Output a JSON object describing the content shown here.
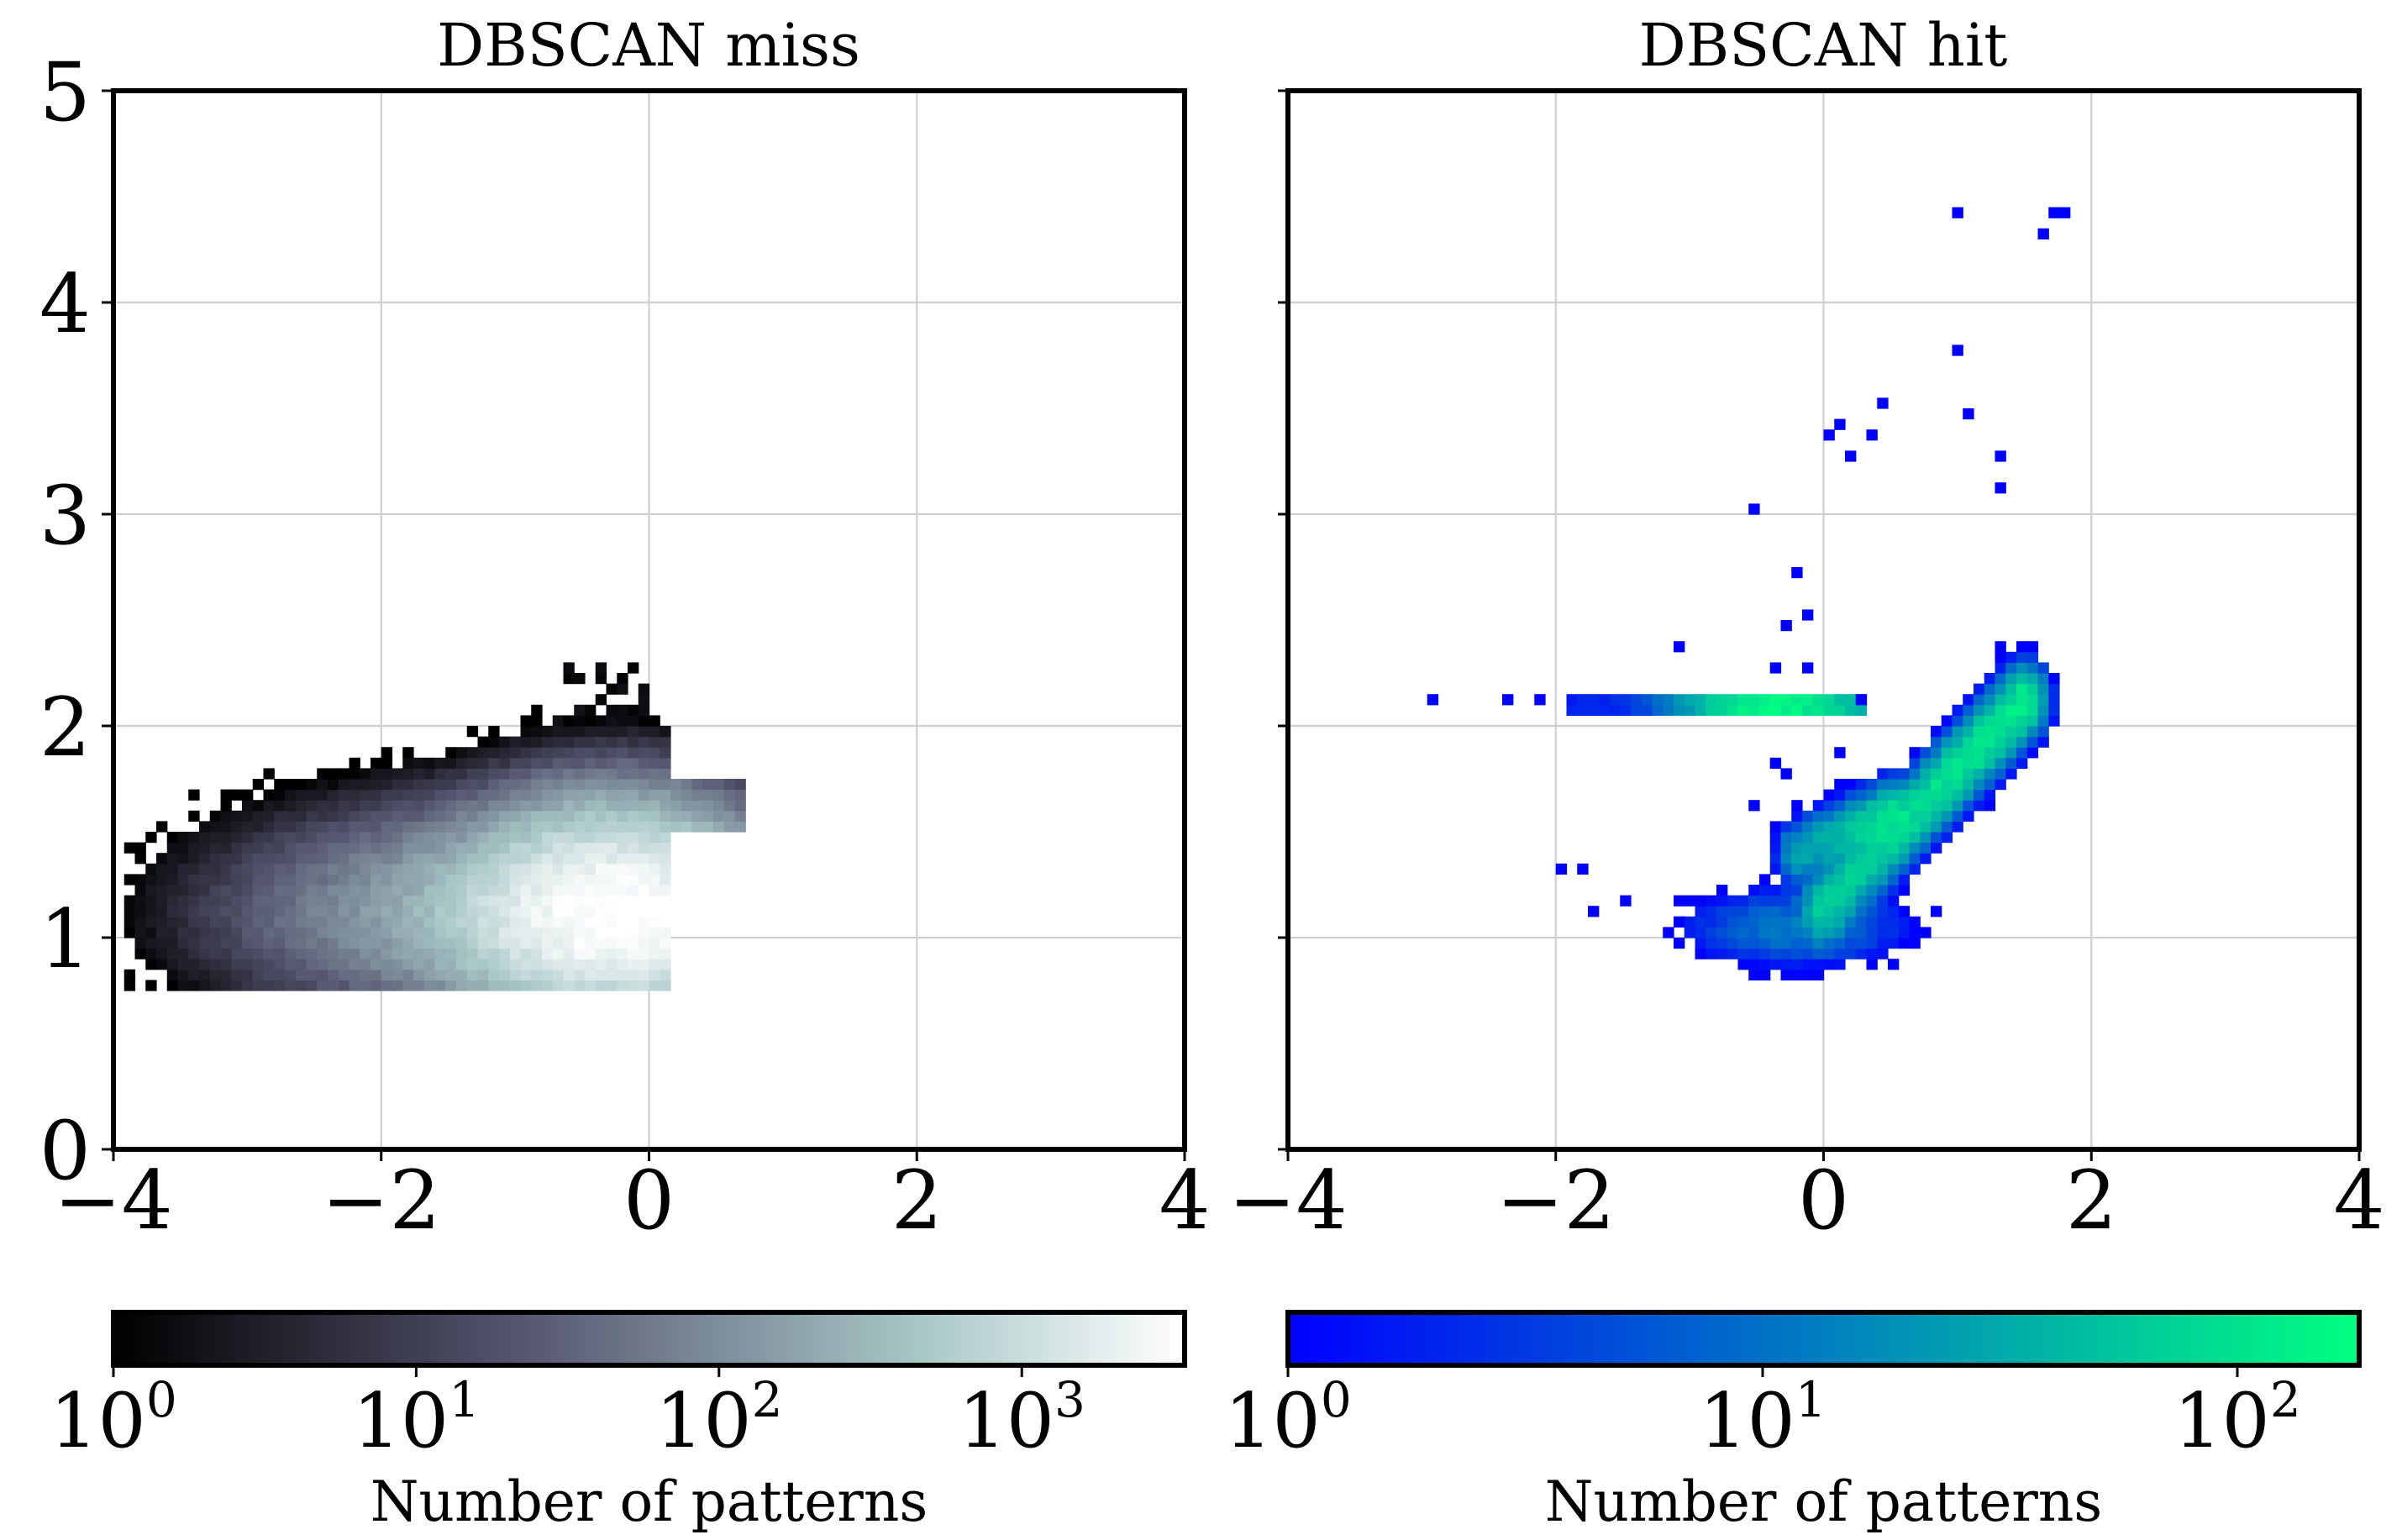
{
  "chart_data": [
    {
      "type": "heatmap",
      "title": "DBSCAN miss",
      "xlabel": "",
      "ylabel": "",
      "xlim": [
        -4,
        4
      ],
      "ylim": [
        0,
        5
      ],
      "grid": true,
      "x_ticks": [
        "−4",
        "−2",
        "0",
        "2",
        "4"
      ],
      "y_ticks": [
        "0",
        "1",
        "2",
        "3",
        "4",
        "5"
      ],
      "colormap": "bone",
      "colorbar": {
        "label": "Number of patterns",
        "scale": "log",
        "range": [
          1,
          3500
        ],
        "ticks": [
          {
            "base": "10",
            "exp": "0",
            "value": 1
          },
          {
            "base": "10",
            "exp": "1",
            "value": 10
          },
          {
            "base": "10",
            "exp": "2",
            "value": 100
          },
          {
            "base": "10",
            "exp": "3",
            "value": 1000
          }
        ]
      },
      "density_regions": [
        {
          "cx": -0.25,
          "cy": 1.1,
          "sx": 0.55,
          "sy": 0.2,
          "peak": 3500
        },
        {
          "cx": -0.9,
          "cy": 1.12,
          "sx": 0.9,
          "sy": 0.22,
          "peak": 300
        },
        {
          "cx": -0.25,
          "cy": 1.35,
          "sx": 0.45,
          "sy": 0.2,
          "peak": 400
        },
        {
          "cx": -0.5,
          "cy": 1.55,
          "sx": 0.5,
          "sy": 0.12,
          "peak": 25
        },
        {
          "cx": -2.2,
          "cy": 1.08,
          "sx": 0.55,
          "sy": 0.1,
          "peak": 8
        }
      ],
      "support": {
        "x": [
          -3.9,
          0.7
        ],
        "y": [
          0.75,
          2.3
        ]
      }
    },
    {
      "type": "heatmap",
      "title": "DBSCAN hit",
      "xlabel": "",
      "ylabel": "",
      "xlim": [
        -4,
        4
      ],
      "ylim": [
        0,
        5
      ],
      "grid": true,
      "x_ticks": [
        "−4",
        "−2",
        "0",
        "2",
        "4"
      ],
      "y_ticks": [
        "0",
        "1",
        "2",
        "3",
        "4",
        "5"
      ],
      "colormap": "winter",
      "colorbar": {
        "label": "Number of patterns",
        "scale": "log",
        "range": [
          1,
          180
        ],
        "ticks": [
          {
            "base": "10",
            "exp": "0",
            "value": 1
          },
          {
            "base": "10",
            "exp": "1",
            "value": 10
          },
          {
            "base": "10",
            "exp": "2",
            "value": 100
          }
        ]
      },
      "density_regions": [
        {
          "type": "segment",
          "x0": 0.0,
          "y0": 1.15,
          "x1": 1.5,
          "y1": 2.12,
          "width": 0.08,
          "peak": 120
        },
        {
          "type": "segment",
          "x0": -0.2,
          "y0": 1.4,
          "x1": 0.5,
          "y1": 1.6,
          "width": 0.07,
          "peak": 60
        },
        {
          "type": "blob",
          "cx": -0.2,
          "cy": 1.05,
          "sx": 0.4,
          "sy": 0.09,
          "peak": 12
        },
        {
          "type": "hline",
          "y": 2.1,
          "x0": -1.9,
          "x1": 0.3,
          "peak_x": -0.35,
          "peak": 150
        }
      ],
      "sparse_bins": [
        [
          -2.9,
          2.1
        ],
        [
          -2.35,
          2.1
        ],
        [
          -2.1,
          2.1
        ],
        [
          -1.05,
          2.35
        ],
        [
          -0.55,
          3.05
        ],
        [
          0.0,
          3.35
        ],
        [
          0.1,
          3.4
        ],
        [
          0.2,
          3.3
        ],
        [
          0.35,
          3.35
        ],
        [
          0.4,
          3.5
        ],
        [
          1.0,
          4.4
        ],
        [
          1.65,
          4.35
        ],
        [
          1.7,
          4.4
        ],
        [
          1.8,
          4.4
        ],
        [
          1.0,
          3.78
        ],
        [
          1.1,
          3.45
        ],
        [
          1.35,
          3.25
        ],
        [
          1.35,
          3.1
        ],
        [
          -0.2,
          2.7
        ],
        [
          -0.1,
          2.55
        ],
        [
          -0.3,
          2.45
        ],
        [
          -0.15,
          2.3
        ],
        [
          -0.35,
          2.25
        ],
        [
          -0.4,
          1.8
        ],
        [
          -0.3,
          1.75
        ],
        [
          -1.95,
          1.3
        ],
        [
          -1.8,
          1.3
        ],
        [
          -1.45,
          1.2
        ],
        [
          -1.7,
          1.1
        ],
        [
          -1.1,
          1.05
        ],
        [
          -0.55,
          1.65
        ],
        [
          1.35,
          2.35
        ],
        [
          0.25,
          2.1
        ],
        [
          0.1,
          1.85
        ]
      ]
    }
  ]
}
